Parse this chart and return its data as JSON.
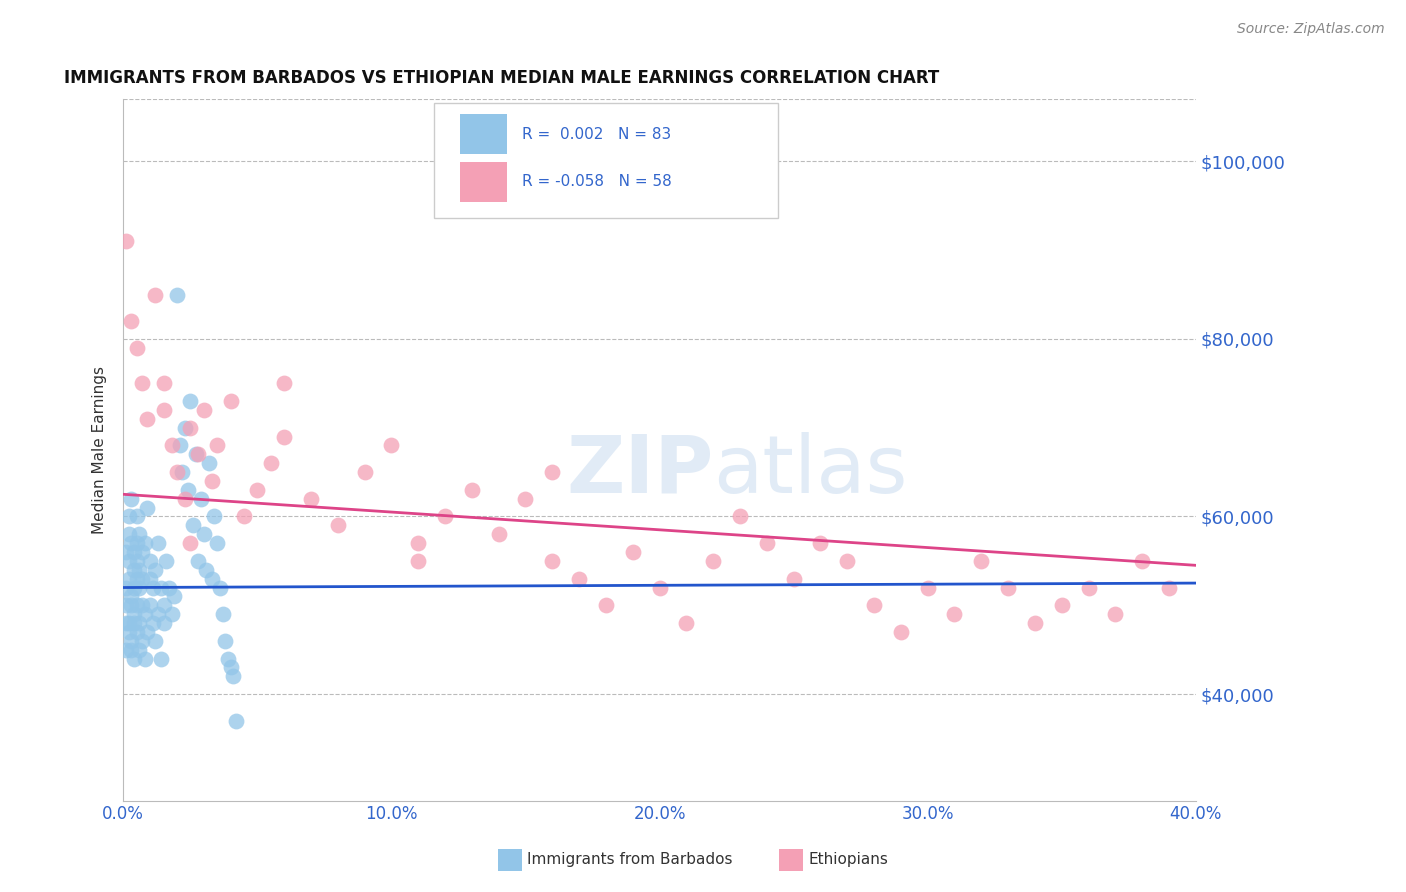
{
  "title": "IMMIGRANTS FROM BARBADOS VS ETHIOPIAN MEDIAN MALE EARNINGS CORRELATION CHART",
  "source": "Source: ZipAtlas.com",
  "ylabel": "Median Male Earnings",
  "xlim": [
    0.0,
    0.4
  ],
  "ylim": [
    28000,
    107000
  ],
  "yticks": [
    40000,
    60000,
    80000,
    100000
  ],
  "xticks": [
    0.0,
    0.1,
    0.2,
    0.3,
    0.4
  ],
  "xticklabels": [
    "0.0%",
    "10.0%",
    "20.0%",
    "30.0%",
    "40.0%"
  ],
  "yticklabels": [
    "$40,000",
    "$60,000",
    "$80,000",
    "$100,000"
  ],
  "barbados_color": "#92c5e8",
  "ethiopian_color": "#f4a0b5",
  "barbados_R": 0.002,
  "barbados_N": 83,
  "ethiopian_R": -0.058,
  "ethiopian_N": 58,
  "trend_blue": "#2255cc",
  "trend_pink": "#dd4488",
  "background": "#ffffff",
  "grid_color": "#bbbbbb",
  "watermark": "ZIPatlas",
  "barbados_x": [
    0.001,
    0.001,
    0.001,
    0.001,
    0.001,
    0.002,
    0.002,
    0.002,
    0.002,
    0.002,
    0.002,
    0.003,
    0.003,
    0.003,
    0.003,
    0.003,
    0.003,
    0.004,
    0.004,
    0.004,
    0.004,
    0.004,
    0.004,
    0.005,
    0.005,
    0.005,
    0.005,
    0.005,
    0.005,
    0.006,
    0.006,
    0.006,
    0.006,
    0.006,
    0.007,
    0.007,
    0.007,
    0.007,
    0.008,
    0.008,
    0.008,
    0.009,
    0.009,
    0.01,
    0.01,
    0.01,
    0.011,
    0.011,
    0.012,
    0.012,
    0.013,
    0.013,
    0.014,
    0.014,
    0.015,
    0.015,
    0.016,
    0.017,
    0.018,
    0.019,
    0.02,
    0.021,
    0.022,
    0.023,
    0.024,
    0.025,
    0.026,
    0.027,
    0.028,
    0.029,
    0.03,
    0.031,
    0.032,
    0.033,
    0.034,
    0.035,
    0.036,
    0.037,
    0.038,
    0.039,
    0.04,
    0.041,
    0.042
  ],
  "barbados_y": [
    56000,
    48000,
    45000,
    50000,
    52000,
    47000,
    55000,
    48000,
    60000,
    53000,
    58000,
    50000,
    45000,
    62000,
    57000,
    51000,
    46000,
    54000,
    49000,
    56000,
    52000,
    48000,
    44000,
    57000,
    53000,
    60000,
    47000,
    55000,
    50000,
    58000,
    45000,
    52000,
    48000,
    54000,
    50000,
    46000,
    56000,
    53000,
    49000,
    57000,
    44000,
    61000,
    47000,
    53000,
    50000,
    55000,
    48000,
    52000,
    46000,
    54000,
    49000,
    57000,
    44000,
    52000,
    50000,
    48000,
    55000,
    52000,
    49000,
    51000,
    85000,
    68000,
    65000,
    70000,
    63000,
    73000,
    59000,
    67000,
    55000,
    62000,
    58000,
    54000,
    66000,
    53000,
    60000,
    57000,
    52000,
    49000,
    46000,
    44000,
    43000,
    42000,
    37000
  ],
  "ethiopian_x": [
    0.001,
    0.003,
    0.005,
    0.007,
    0.009,
    0.012,
    0.015,
    0.018,
    0.02,
    0.023,
    0.025,
    0.028,
    0.03,
    0.033,
    0.035,
    0.04,
    0.045,
    0.05,
    0.055,
    0.06,
    0.07,
    0.08,
    0.09,
    0.1,
    0.11,
    0.12,
    0.13,
    0.14,
    0.15,
    0.16,
    0.17,
    0.18,
    0.19,
    0.2,
    0.21,
    0.22,
    0.23,
    0.24,
    0.25,
    0.26,
    0.27,
    0.28,
    0.29,
    0.3,
    0.31,
    0.32,
    0.33,
    0.34,
    0.35,
    0.36,
    0.37,
    0.38,
    0.39,
    0.015,
    0.025,
    0.06,
    0.11,
    0.16
  ],
  "ethiopian_y": [
    91000,
    82000,
    79000,
    75000,
    71000,
    85000,
    72000,
    68000,
    65000,
    62000,
    70000,
    67000,
    72000,
    64000,
    68000,
    73000,
    60000,
    63000,
    66000,
    69000,
    62000,
    59000,
    65000,
    68000,
    57000,
    60000,
    63000,
    58000,
    62000,
    55000,
    53000,
    50000,
    56000,
    52000,
    48000,
    55000,
    60000,
    57000,
    53000,
    57000,
    55000,
    50000,
    47000,
    52000,
    49000,
    55000,
    52000,
    48000,
    50000,
    52000,
    49000,
    55000,
    52000,
    75000,
    57000,
    75000,
    55000,
    65000
  ]
}
